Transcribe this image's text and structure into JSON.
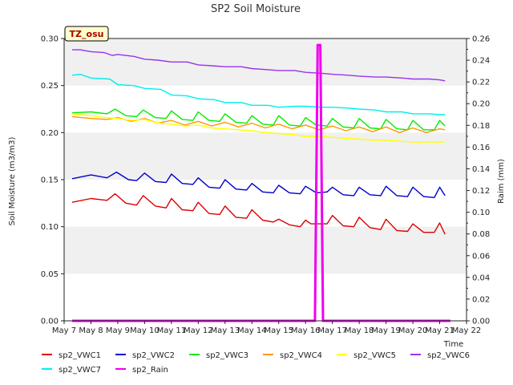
{
  "chart_data": {
    "type": "line",
    "title": "SP2 Soil Moisture",
    "badge": "TZ_osu",
    "xlabel": "Time",
    "ylabel": "Soil Moisture (m3/m3)",
    "y2label": "Raim (mm)",
    "xlim": [
      7,
      22
    ],
    "ylim": [
      0,
      0.3
    ],
    "y2lim": [
      0,
      0.26
    ],
    "x_ticks": [
      7,
      8,
      9,
      10,
      11,
      12,
      13,
      14,
      15,
      16,
      17,
      18,
      19,
      20,
      21,
      22
    ],
    "x_tick_labels": [
      "May 7",
      "May 8",
      "May 9",
      "May 10",
      "May 11",
      "May 12",
      "May 13",
      "May 14",
      "May 15",
      "May 16",
      "May 17",
      "May 18",
      "May 19",
      "May 20",
      "May 21",
      "May 22"
    ],
    "y_ticks": [
      0.0,
      0.05,
      0.1,
      0.15,
      0.2,
      0.25,
      0.3
    ],
    "y_tick_labels": [
      "0.00",
      "0.05",
      "0.10",
      "0.15",
      "0.20",
      "0.25",
      "0.30"
    ],
    "y2_ticks": [
      0.0,
      0.02,
      0.04,
      0.06,
      0.08,
      0.1,
      0.12,
      0.14,
      0.16,
      0.18,
      0.2,
      0.22,
      0.24,
      0.26
    ],
    "y2_tick_labels": [
      "0.00",
      "0.02",
      "0.04",
      "0.06",
      "0.08",
      "0.10",
      "0.12",
      "0.14",
      "0.16",
      "0.18",
      "0.20",
      "0.22",
      "0.24",
      "0.26"
    ],
    "grid": "horizontal bands",
    "legend_position": "bottom",
    "series": [
      {
        "name": "sp2_VWC1",
        "color": "#dd0000",
        "axis": "left",
        "x": [
          7.3,
          8.0,
          8.6,
          8.9,
          9.3,
          9.7,
          9.95,
          10.4,
          10.8,
          11.0,
          11.4,
          11.8,
          12.0,
          12.4,
          12.8,
          13.0,
          13.4,
          13.8,
          14.0,
          14.4,
          14.8,
          15.0,
          15.4,
          15.8,
          16.0,
          16.2,
          16.8,
          17.0,
          17.4,
          17.8,
          18.0,
          18.4,
          18.8,
          19.0,
          19.4,
          19.8,
          20.0,
          20.4,
          20.8,
          21.0,
          21.2
        ],
        "y": [
          0.126,
          0.13,
          0.128,
          0.135,
          0.125,
          0.123,
          0.133,
          0.122,
          0.12,
          0.13,
          0.118,
          0.117,
          0.126,
          0.114,
          0.113,
          0.122,
          0.11,
          0.109,
          0.118,
          0.107,
          0.105,
          0.108,
          0.102,
          0.1,
          0.107,
          0.103,
          0.103,
          0.112,
          0.101,
          0.1,
          0.11,
          0.099,
          0.097,
          0.108,
          0.096,
          0.095,
          0.103,
          0.094,
          0.094,
          0.104,
          0.092
        ]
      },
      {
        "name": "sp2_VWC2",
        "color": "#0000cc",
        "axis": "left",
        "x": [
          7.3,
          8.0,
          8.6,
          8.95,
          9.4,
          9.7,
          10.0,
          10.4,
          10.8,
          11.0,
          11.4,
          11.8,
          12.0,
          12.4,
          12.8,
          13.0,
          13.4,
          13.8,
          14.0,
          14.4,
          14.8,
          15.0,
          15.4,
          15.8,
          16.0,
          16.4,
          16.8,
          17.0,
          17.4,
          17.8,
          18.0,
          18.4,
          18.8,
          19.0,
          19.4,
          19.8,
          20.0,
          20.4,
          20.8,
          21.0,
          21.2
        ],
        "y": [
          0.151,
          0.155,
          0.152,
          0.158,
          0.15,
          0.149,
          0.157,
          0.148,
          0.147,
          0.156,
          0.146,
          0.145,
          0.152,
          0.142,
          0.141,
          0.15,
          0.14,
          0.139,
          0.146,
          0.137,
          0.136,
          0.144,
          0.136,
          0.135,
          0.143,
          0.136,
          0.137,
          0.142,
          0.134,
          0.133,
          0.142,
          0.134,
          0.133,
          0.143,
          0.133,
          0.132,
          0.142,
          0.132,
          0.131,
          0.142,
          0.133
        ]
      },
      {
        "name": "sp2_VWC3",
        "color": "#00ee00",
        "axis": "left",
        "x": [
          7.3,
          8.0,
          8.6,
          8.9,
          9.3,
          9.7,
          9.95,
          10.4,
          10.8,
          11.0,
          11.4,
          11.8,
          12.0,
          12.4,
          12.8,
          13.0,
          13.4,
          13.8,
          14.0,
          14.4,
          14.8,
          15.0,
          15.4,
          15.8,
          16.0,
          16.4,
          16.8,
          17.0,
          17.4,
          17.8,
          18.0,
          18.4,
          18.8,
          19.0,
          19.4,
          19.8,
          20.0,
          20.4,
          20.8,
          21.0,
          21.2
        ],
        "y": [
          0.221,
          0.222,
          0.22,
          0.225,
          0.218,
          0.217,
          0.224,
          0.216,
          0.215,
          0.223,
          0.214,
          0.213,
          0.222,
          0.213,
          0.212,
          0.22,
          0.211,
          0.21,
          0.218,
          0.209,
          0.208,
          0.218,
          0.208,
          0.207,
          0.216,
          0.208,
          0.207,
          0.215,
          0.206,
          0.205,
          0.215,
          0.205,
          0.204,
          0.214,
          0.204,
          0.203,
          0.213,
          0.203,
          0.203,
          0.213,
          0.207
        ]
      },
      {
        "name": "sp2_VWC4",
        "color": "#ff9900",
        "axis": "left",
        "x": [
          7.3,
          8.0,
          8.6,
          9.0,
          9.5,
          10.0,
          10.5,
          11.0,
          11.5,
          12.0,
          12.5,
          13.0,
          13.5,
          14.0,
          14.5,
          15.0,
          15.5,
          16.0,
          16.5,
          17.0,
          17.5,
          18.0,
          18.5,
          19.0,
          19.5,
          20.0,
          20.5,
          21.0,
          21.2
        ],
        "y": [
          0.217,
          0.215,
          0.214,
          0.216,
          0.212,
          0.215,
          0.21,
          0.213,
          0.208,
          0.212,
          0.207,
          0.211,
          0.206,
          0.21,
          0.205,
          0.209,
          0.204,
          0.208,
          0.203,
          0.207,
          0.202,
          0.206,
          0.201,
          0.206,
          0.2,
          0.205,
          0.2,
          0.204,
          0.203
        ]
      },
      {
        "name": "sp2_VWC5",
        "color": "#ffff00",
        "axis": "left",
        "x": [
          7.3,
          8.0,
          8.5,
          9.0,
          9.5,
          10.0,
          10.5,
          11.0,
          11.5,
          12.0,
          12.5,
          13.0,
          13.5,
          14.0,
          14.5,
          15.0,
          15.5,
          16.0,
          16.5,
          17.0,
          17.5,
          18.0,
          18.5,
          19.0,
          19.5,
          20.0,
          20.5,
          21.0,
          21.2
        ],
        "y": [
          0.22,
          0.218,
          0.216,
          0.215,
          0.213,
          0.214,
          0.21,
          0.209,
          0.207,
          0.208,
          0.205,
          0.204,
          0.203,
          0.202,
          0.2,
          0.199,
          0.198,
          0.196,
          0.196,
          0.195,
          0.194,
          0.193,
          0.192,
          0.192,
          0.191,
          0.19,
          0.19,
          0.19,
          0.19
        ]
      },
      {
        "name": "sp2_VWC6",
        "color": "#9933ee",
        "axis": "left",
        "x": [
          7.3,
          7.6,
          8.0,
          8.5,
          8.8,
          9.0,
          9.6,
          10.0,
          10.5,
          11.0,
          11.6,
          12.0,
          12.5,
          13.0,
          13.6,
          14.0,
          14.5,
          15.0,
          15.6,
          16.0,
          16.6,
          17.0,
          17.6,
          18.0,
          18.6,
          19.0,
          19.6,
          20.0,
          20.6,
          21.0,
          21.2
        ],
        "y": [
          0.288,
          0.288,
          0.286,
          0.285,
          0.282,
          0.283,
          0.281,
          0.278,
          0.277,
          0.275,
          0.275,
          0.272,
          0.271,
          0.27,
          0.27,
          0.268,
          0.267,
          0.266,
          0.266,
          0.264,
          0.263,
          0.262,
          0.261,
          0.26,
          0.259,
          0.259,
          0.258,
          0.257,
          0.257,
          0.256,
          0.255
        ]
      },
      {
        "name": "sp2_VWC7",
        "color": "#00eeee",
        "axis": "left",
        "x": [
          7.3,
          7.6,
          8.0,
          8.7,
          9.0,
          9.6,
          10.0,
          10.6,
          11.0,
          11.6,
          12.0,
          12.6,
          13.0,
          13.6,
          14.0,
          14.6,
          15.0,
          15.6,
          16.0,
          16.6,
          17.0,
          17.6,
          18.0,
          18.6,
          19.0,
          19.6,
          20.0,
          20.6,
          21.0,
          21.2
        ],
        "y": [
          0.261,
          0.262,
          0.258,
          0.257,
          0.251,
          0.25,
          0.247,
          0.246,
          0.24,
          0.239,
          0.236,
          0.235,
          0.232,
          0.232,
          0.229,
          0.229,
          0.227,
          0.228,
          0.228,
          0.227,
          0.227,
          0.226,
          0.225,
          0.224,
          0.222,
          0.222,
          0.22,
          0.22,
          0.219,
          0.219
        ]
      },
      {
        "name": "sp2_Rain",
        "color": "#ee00ee",
        "axis": "right",
        "x": [
          7.3,
          16.35,
          16.45,
          16.55,
          16.65,
          21.4
        ],
        "y": [
          0.0,
          0.0,
          0.254,
          0.254,
          0.0,
          0.0
        ]
      }
    ]
  }
}
